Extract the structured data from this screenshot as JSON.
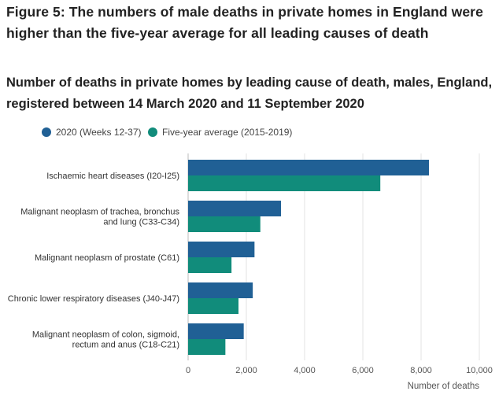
{
  "figure_title": "Figure 5: The numbers of male deaths in private homes in England were higher than the five-year average for all leading causes of death",
  "subtitle": "Number of deaths in private homes by leading cause of death, males, England, registered between 14 March 2020 and 11 September 2020",
  "chart_data": {
    "type": "bar",
    "orientation": "horizontal",
    "categories": [
      [
        "Ischaemic heart diseases (I20-I25)"
      ],
      [
        "Malignant neoplasm of trachea, bronchus",
        "and lung (C33-C34)"
      ],
      [
        "Malignant neoplasm of prostate (C61)"
      ],
      [
        "Chronic lower respiratory diseases (J40-J47)"
      ],
      [
        "Malignant neoplasm of colon, sigmoid,",
        "rectum and anus (C18-C21)"
      ]
    ],
    "series": [
      {
        "name": "2020 (Weeks 12-37)",
        "color": "#206095",
        "values": [
          8270,
          3190,
          2280,
          2220,
          1910
        ]
      },
      {
        "name": "Five-year average (2015-2019)",
        "color": "#118c7b",
        "values": [
          6600,
          2480,
          1490,
          1730,
          1280
        ]
      }
    ],
    "xlim": [
      0,
      10000
    ],
    "xticks": [
      "0",
      "2,000",
      "4,000",
      "6,000",
      "8,000",
      "10,000"
    ],
    "xtick_values": [
      0,
      2000,
      4000,
      6000,
      8000,
      10000
    ],
    "xlabel": "Number of deaths",
    "ylabel": "",
    "grid": true,
    "legend_position": "top"
  }
}
